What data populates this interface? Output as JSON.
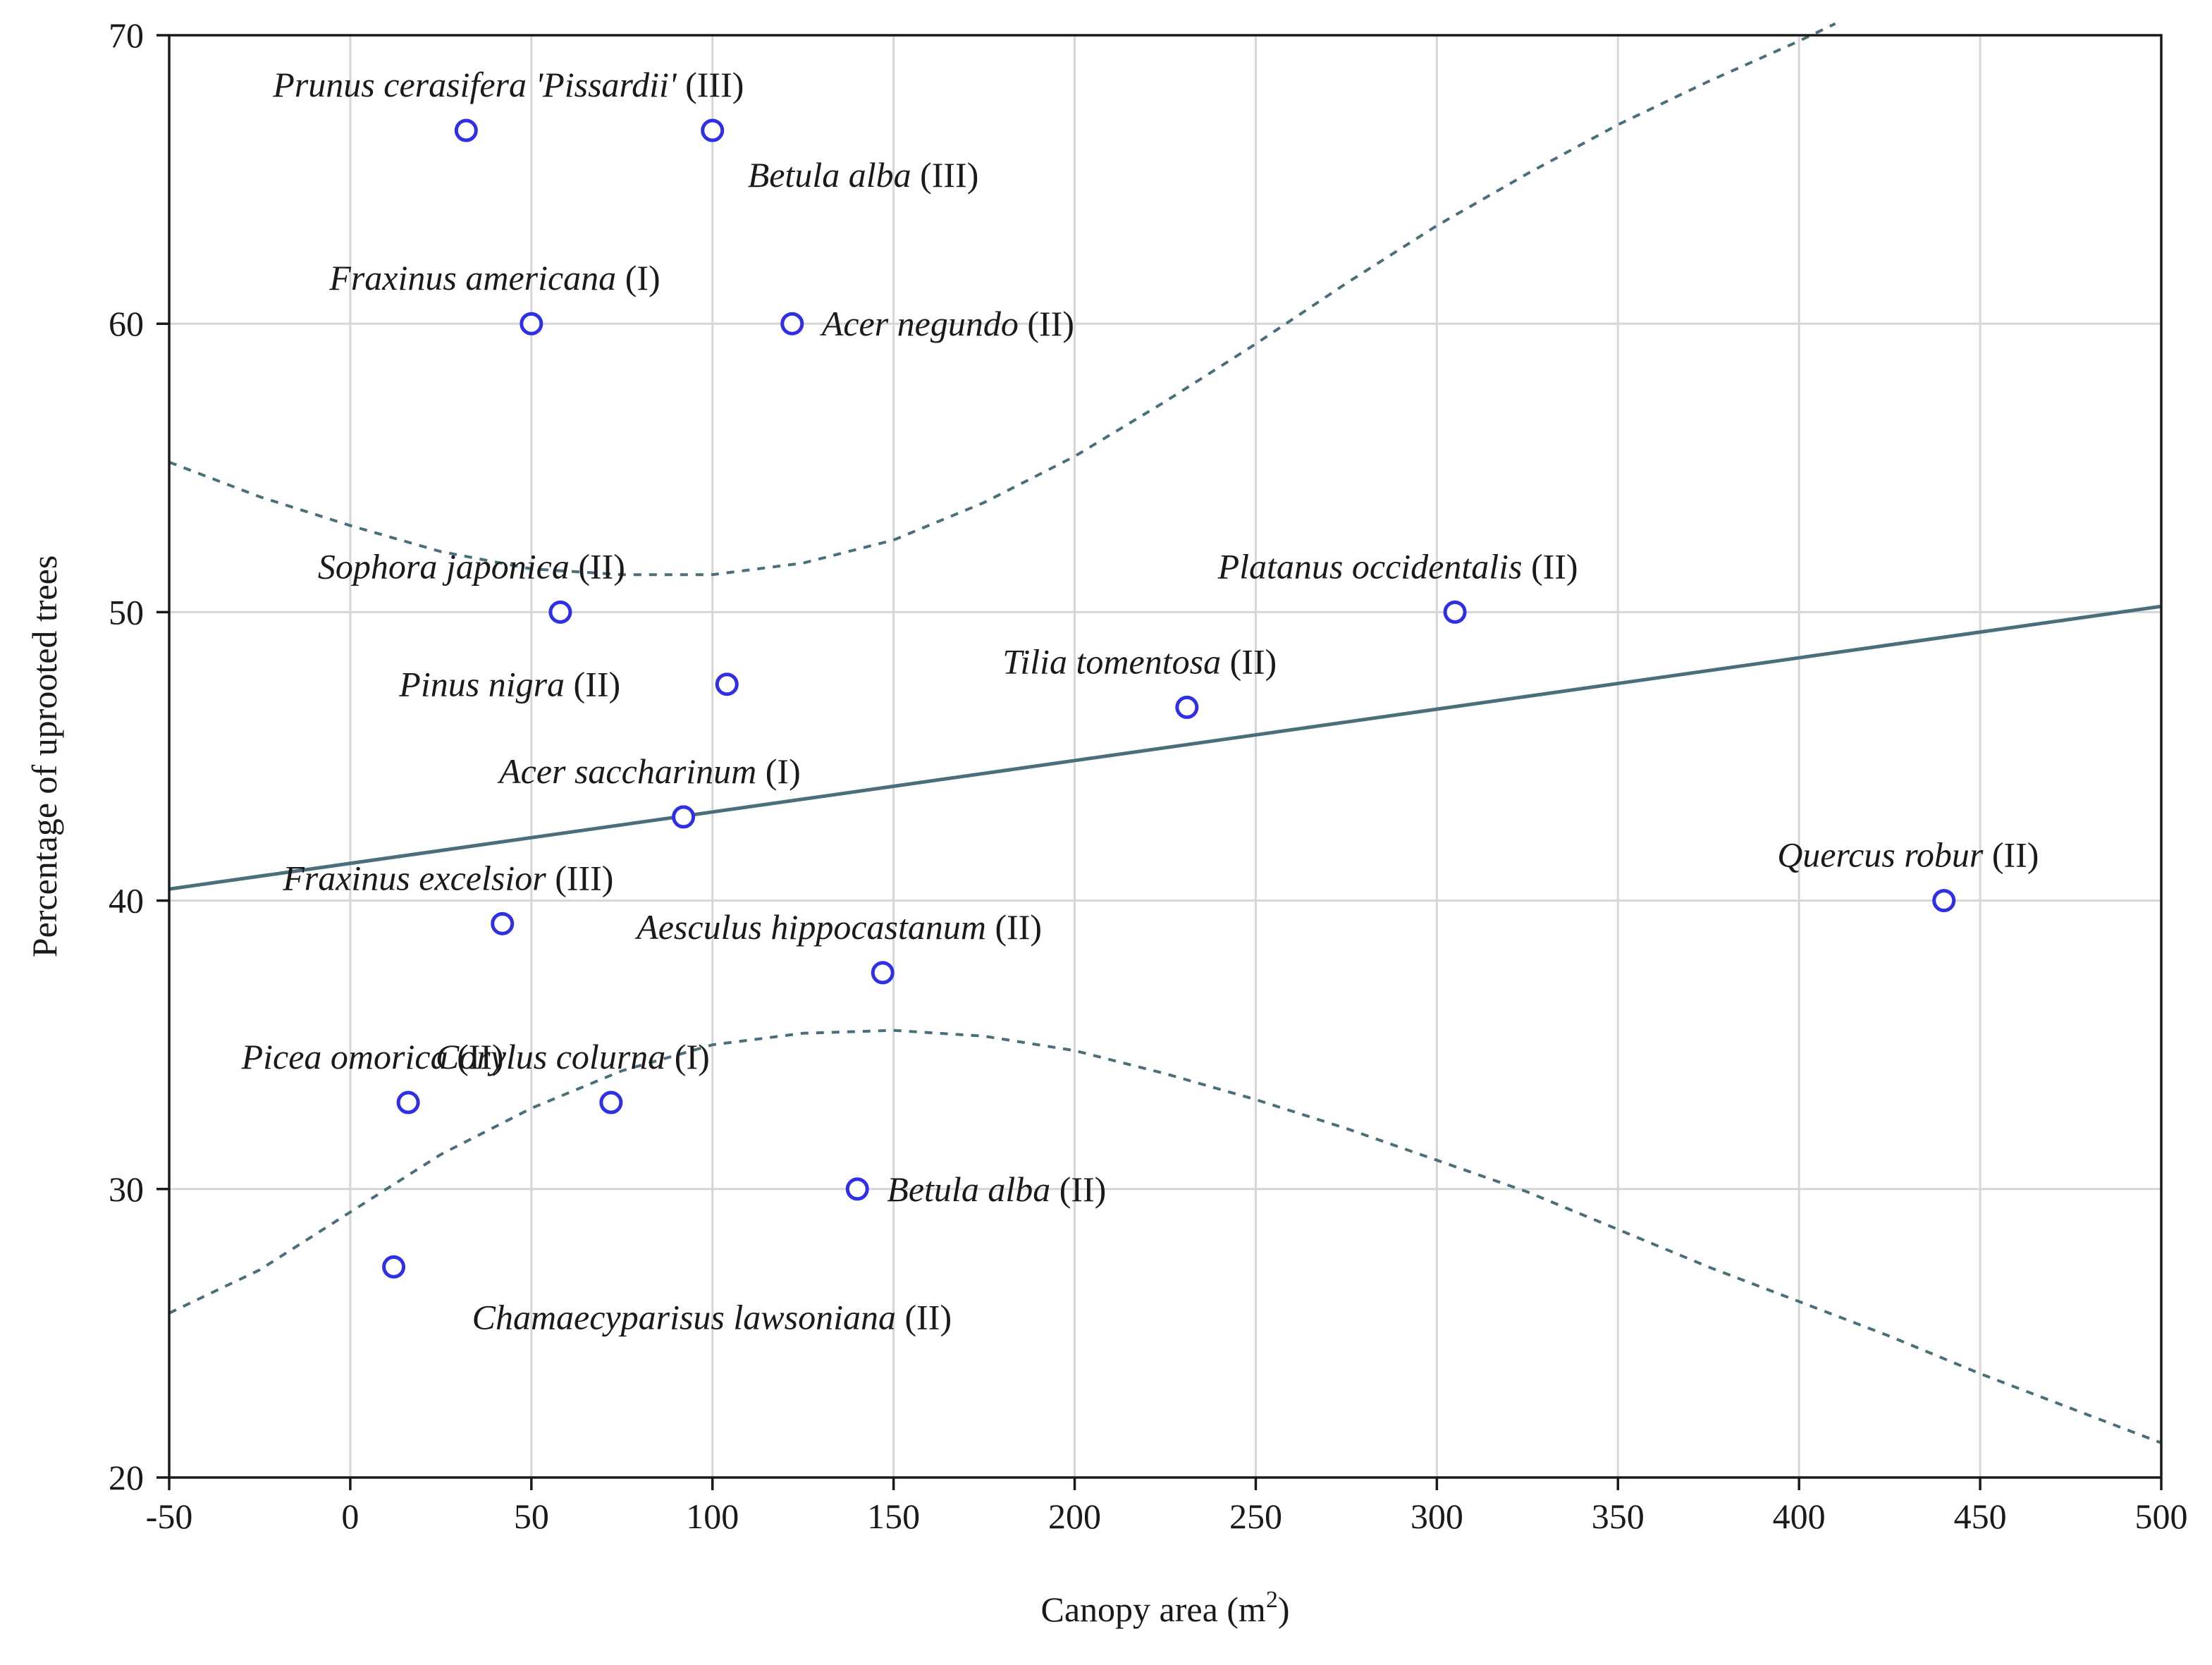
{
  "chart_data": {
    "type": "scatter",
    "title": "",
    "xlabel": "Canopy area (m",
    "xlabel_sup": "2",
    "xlabel_end": ")",
    "ylabel": "Percentage of uprooted trees",
    "xlim": [
      -50,
      500
    ],
    "ylim": [
      20,
      70
    ],
    "xticks": [
      -50,
      0,
      50,
      100,
      150,
      200,
      250,
      300,
      350,
      400,
      450,
      500
    ],
    "yticks": [
      20,
      30,
      40,
      50,
      60,
      70
    ],
    "grid": true,
    "points": [
      {
        "species": "Prunus cerasifera 'Pissardii'",
        "group": "(III)",
        "x": 32,
        "y": 66.7,
        "label_pos": "above-right"
      },
      {
        "species": "Betula alba",
        "group": "(III)",
        "x": 100,
        "y": 66.7,
        "label_pos": "below-right"
      },
      {
        "species": "Fraxinus americana",
        "group": "(I)",
        "x": 50,
        "y": 60,
        "label_pos": "above"
      },
      {
        "species": "Acer negundo",
        "group": "(II)",
        "x": 122,
        "y": 60,
        "label_pos": "right"
      },
      {
        "species": "Sophora japonica",
        "group": "(II)",
        "x": 58,
        "y": 50,
        "label_pos": "above-left"
      },
      {
        "species": "Platanus occidentalis",
        "group": "(II)",
        "x": 305,
        "y": 50,
        "label_pos": "above"
      },
      {
        "species": "Pinus nigra",
        "group": "(II)",
        "x": 104,
        "y": 47.5,
        "label_pos": "left"
      },
      {
        "species": "Tilia tomentosa",
        "group": "(II)",
        "x": 231,
        "y": 46.7,
        "label_pos": "above"
      },
      {
        "species": "Acer saccharinum",
        "group": "(I)",
        "x": 92,
        "y": 42.9,
        "label_pos": "above"
      },
      {
        "species": "Quercus robur",
        "group": "(II)",
        "x": 440,
        "y": 40,
        "label_pos": "above"
      },
      {
        "species": "Fraxinus excelsior",
        "group": "(III)",
        "x": 42,
        "y": 39.2,
        "label_pos": "above"
      },
      {
        "species": "Aesculus hippocastanum",
        "group": "(II)",
        "x": 147,
        "y": 37.5,
        "label_pos": "above"
      },
      {
        "species": "Picea omorica",
        "group": "(II)",
        "x": 16,
        "y": 33,
        "label_pos": "above"
      },
      {
        "species": "Corylus colurna",
        "group": "(I)",
        "x": 72,
        "y": 33,
        "label_pos": "above"
      },
      {
        "species": "Betula alba",
        "group": "(II)",
        "x": 140,
        "y": 30,
        "label_pos": "right"
      },
      {
        "species": "Chamaecyparisus lawsoniana",
        "group": "(II)",
        "x": 12,
        "y": 27.3,
        "label_pos": "below"
      }
    ],
    "regression": {
      "x": [
        -50,
        500
      ],
      "y": [
        40.4,
        50.2
      ]
    },
    "confidence_upper": {
      "x": [
        -50,
        -25,
        0,
        25,
        50,
        75,
        100,
        125,
        150,
        175,
        200,
        225,
        250,
        275,
        300,
        325,
        350,
        375,
        400,
        410
      ],
      "y": [
        55.2,
        54.0,
        53.0,
        52.1,
        51.5,
        51.3,
        51.3,
        51.7,
        52.5,
        53.8,
        55.4,
        57.3,
        59.3,
        61.4,
        63.4,
        65.2,
        66.9,
        68.4,
        69.8,
        70.4
      ]
    },
    "confidence_lower": {
      "x": [
        -50,
        -25,
        0,
        25,
        50,
        75,
        100,
        125,
        150,
        175,
        200,
        225,
        250,
        275,
        300,
        325,
        350,
        375,
        400,
        425,
        450,
        475,
        500
      ],
      "y": [
        25.7,
        27.2,
        29.2,
        31.2,
        32.8,
        34.1,
        35.0,
        35.4,
        35.5,
        35.3,
        34.8,
        34.0,
        33.1,
        32.1,
        31.0,
        29.9,
        28.6,
        27.3,
        26.1,
        24.9,
        23.6,
        22.4,
        21.2
      ]
    }
  }
}
